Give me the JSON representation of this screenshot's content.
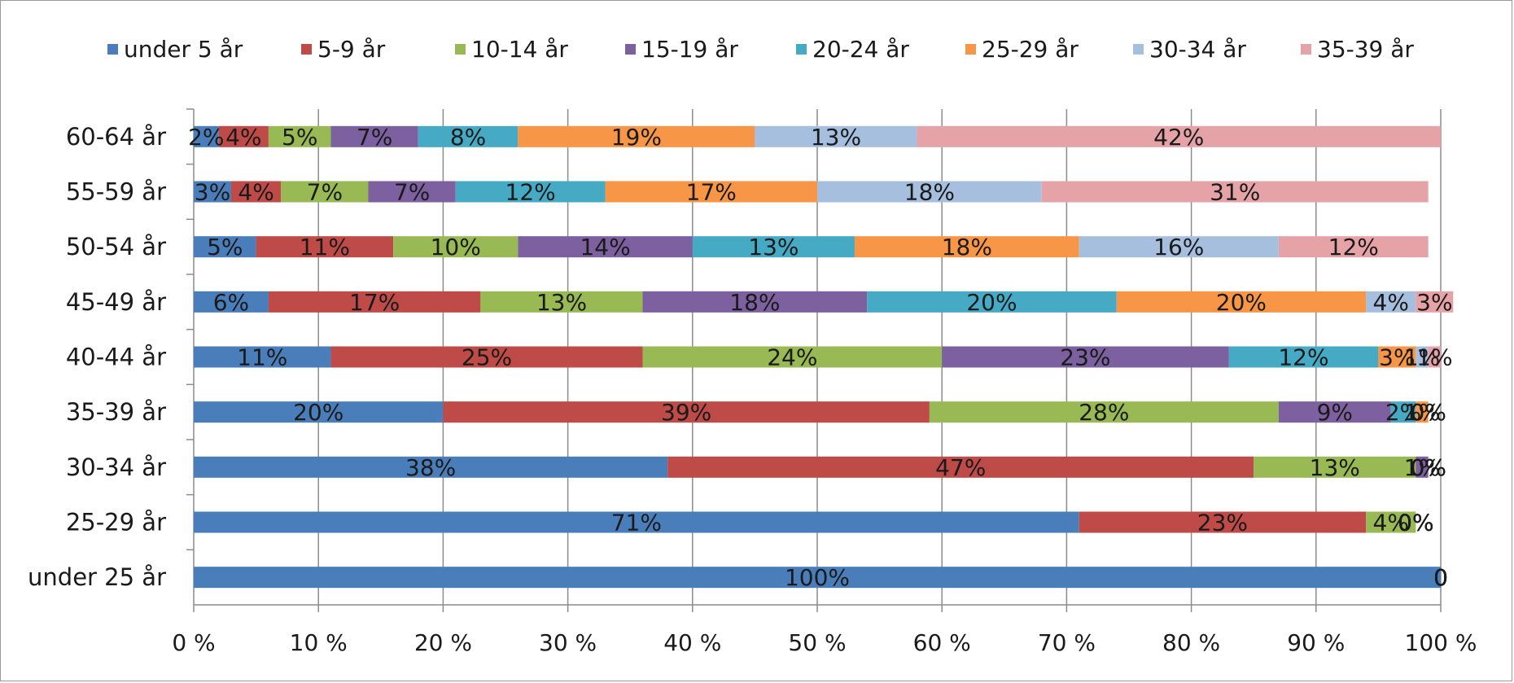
{
  "chart_data": {
    "type": "bar",
    "orientation": "horizontal",
    "stacked": "percent",
    "title": "",
    "xlabel": "",
    "ylabel": "",
    "xlim": [
      0,
      100
    ],
    "x_ticks": [
      "0 %",
      "10 %",
      "20 %",
      "30 %",
      "40 %",
      "50 %",
      "60 %",
      "70 %",
      "80 %",
      "90 %",
      "100 %"
    ],
    "grid": "vertical",
    "legend_position": "top",
    "categories": [
      "under 25 år",
      "25-29 år",
      "30-34 år",
      "35-39 år",
      "40-44 år",
      "45-49 år",
      "50-54 år",
      "55-59 år",
      "60-64 år"
    ],
    "series": [
      {
        "name": "under 5 år",
        "color": "#4a7ebb",
        "values": [
          100,
          71,
          38,
          20,
          11,
          6,
          5,
          3,
          2
        ],
        "labels": [
          "100%",
          "71%",
          "38%",
          "20%",
          "11%",
          "6%",
          "5%",
          "3%",
          "2%"
        ]
      },
      {
        "name": "5-9 år",
        "color": "#be4b48",
        "values": [
          0,
          23,
          47,
          39,
          25,
          17,
          11,
          4,
          4
        ],
        "labels": [
          "0",
          "23%",
          "47%",
          "39%",
          "25%",
          "17%",
          "11%",
          "4%",
          "4%"
        ]
      },
      {
        "name": "10-14 år",
        "color": "#98b954",
        "values": [
          0,
          4,
          13,
          28,
          24,
          13,
          10,
          7,
          5
        ],
        "labels": [
          "0",
          "4%",
          "13%",
          "28%",
          "24%",
          "13%",
          "10%",
          "7%",
          "5%"
        ]
      },
      {
        "name": "15-19 år",
        "color": "#7d60a0",
        "values": [
          0,
          0,
          1,
          9,
          23,
          18,
          14,
          7,
          7
        ],
        "labels": [
          "0",
          "0%",
          "1%",
          "9%",
          "23%",
          "18%",
          "14%",
          "7%",
          "7%"
        ]
      },
      {
        "name": "20-24 år",
        "color": "#46aac5",
        "values": [
          0,
          0,
          0,
          2,
          12,
          20,
          13,
          12,
          8
        ],
        "labels": [
          "0",
          "0%",
          "0%",
          "2%",
          "12%",
          "20%",
          "13%",
          "12%",
          "8%"
        ]
      },
      {
        "name": "25-29 år",
        "color": "#f79646",
        "values": [
          0,
          0,
          0,
          1,
          3,
          20,
          18,
          17,
          19
        ],
        "labels": [
          "0",
          "0%",
          "0%",
          "1%",
          "3%",
          "20%",
          "18%",
          "17%",
          "19%"
        ]
      },
      {
        "name": "30-34 år",
        "color": "#a7bfde",
        "values": [
          0,
          0,
          0,
          0,
          1,
          4,
          16,
          18,
          13
        ],
        "labels": [
          "0",
          "0%",
          "0%",
          "0%",
          "1%",
          "4%",
          "16%",
          "18%",
          "13%"
        ]
      },
      {
        "name": "35-39 år",
        "color": "#e6a3a7",
        "values": [
          0,
          0,
          0,
          0,
          1,
          3,
          12,
          31,
          42
        ],
        "labels": [
          "0",
          "0%",
          "0%",
          "0%",
          "1%",
          "3%",
          "12%",
          "31%",
          "42%"
        ]
      }
    ]
  }
}
